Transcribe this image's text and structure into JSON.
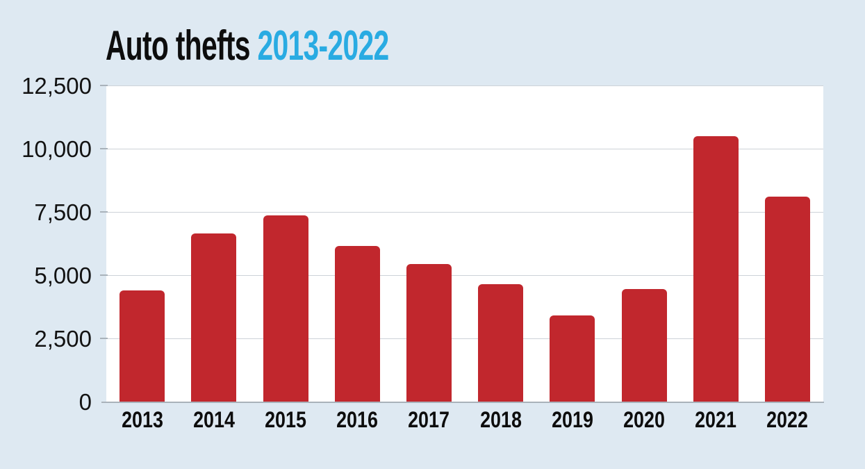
{
  "title": {
    "main": "Auto thefts",
    "range": "2013-2022"
  },
  "colors": {
    "background": "#dee9f2",
    "plot_background": "#ffffff",
    "bar": "#c1272d",
    "accent": "#29abe2",
    "grid": "#cdd2d8",
    "axis": "#a9b2ba",
    "text": "#0d0d0d"
  },
  "chart_data": {
    "type": "bar",
    "title": "Auto thefts 2013-2022",
    "categories": [
      "2013",
      "2014",
      "2015",
      "2016",
      "2017",
      "2018",
      "2019",
      "2020",
      "2021",
      "2022"
    ],
    "values": [
      4400,
      6650,
      7350,
      6150,
      5450,
      4650,
      3400,
      4450,
      10500,
      8100
    ],
    "xlabel": "",
    "ylabel": "",
    "ylim": [
      0,
      12500
    ],
    "yticks": [
      0,
      2500,
      5000,
      7500,
      10000,
      12500
    ],
    "ytick_labels": [
      "0",
      "2,500",
      "5,000",
      "7,500",
      "10,000",
      "12,500"
    ],
    "grid": true,
    "legend": "none",
    "bar_color": "#c1272d"
  }
}
